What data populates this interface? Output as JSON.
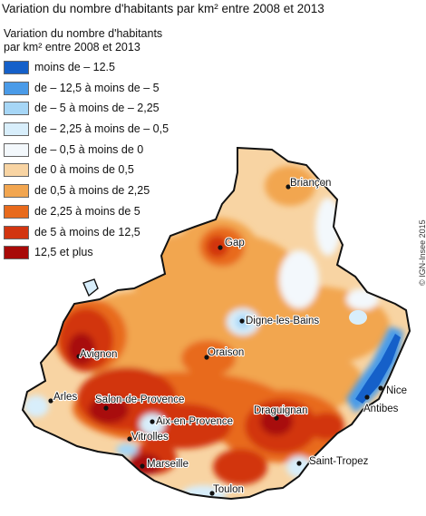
{
  "title": "Variation du nombre d'habitants par km² entre 2008 et 2013",
  "legend": {
    "title_line1": "Variation du nombre d'habitants",
    "title_line2": "par km² entre 2008 et 2013",
    "items": [
      {
        "label": "moins de – 12.5",
        "color": "#1560c9"
      },
      {
        "label": "de  – 12,5 à moins de – 5",
        "color": "#4a9be8"
      },
      {
        "label": "de – 5 à moins de – 2,25",
        "color": "#a6d6f6"
      },
      {
        "label": "de – 2,25 à moins de – 0,5",
        "color": "#d8eefb"
      },
      {
        "label": "de – 0,5 à moins de 0",
        "color": "#f3f8fc"
      },
      {
        "label": "de 0 à moins de 0,5",
        "color": "#f8d4a3"
      },
      {
        "label": "de 0,5 à moins de 2,25",
        "color": "#f2a650"
      },
      {
        "label": "de 2,25 à moins de 5",
        "color": "#e86a1c"
      },
      {
        "label": "de 5 à moins de 12,5",
        "color": "#d23510"
      },
      {
        "label": "12,5 et plus",
        "color": "#a80a08"
      }
    ]
  },
  "copyright": "© IGN-Insee 2015",
  "cities": [
    {
      "name": "Briançon"
    },
    {
      "name": "Gap"
    },
    {
      "name": "Digne-les-Bains"
    },
    {
      "name": "Oraison"
    },
    {
      "name": "Avignon"
    },
    {
      "name": "Arles"
    },
    {
      "name": "Salon-de-Provence"
    },
    {
      "name": "Aix-en-Provence"
    },
    {
      "name": "Vitrolles"
    },
    {
      "name": "Marseille"
    },
    {
      "name": "Toulon"
    },
    {
      "name": "Saint-Tropez"
    },
    {
      "name": "Draguignan"
    },
    {
      "name": "Nice"
    },
    {
      "name": "Antibes"
    }
  ]
}
